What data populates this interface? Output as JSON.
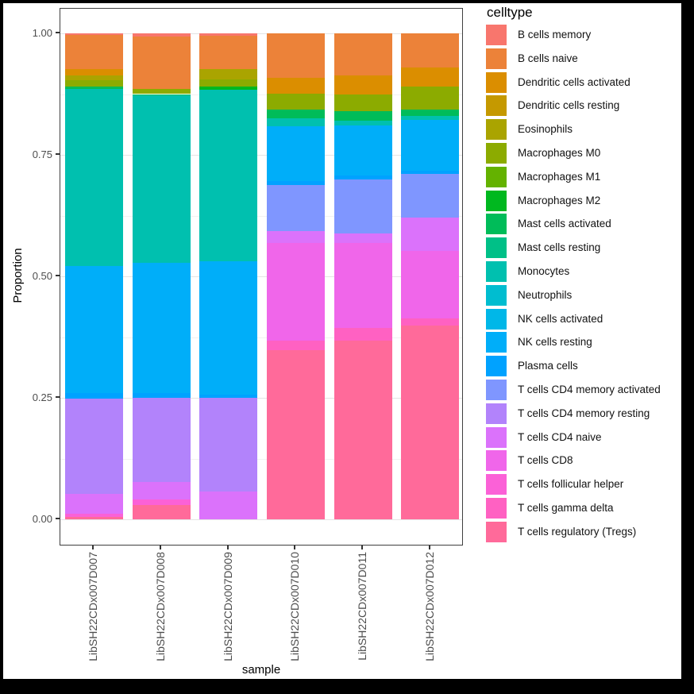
{
  "frame": {
    "background": "#000000"
  },
  "legend": {
    "title": "celltype"
  },
  "axes": {
    "y_title": "Proportion",
    "x_title": "sample",
    "y_tick_labels": [
      "1.00",
      "0.75",
      "0.50",
      "0.25",
      "0.00"
    ]
  },
  "chart_data": {
    "type": "bar",
    "subtype": "stacked_proportion_vertical",
    "title": "",
    "xlabel": "sample",
    "ylabel": "Proportion",
    "ylim": [
      0,
      1
    ],
    "yticks": [
      1.0,
      0.75,
      0.5,
      0.25,
      0.0
    ],
    "ytick_labels": [
      "1.00",
      "0.75",
      "0.50",
      "0.25",
      "0.00"
    ],
    "yticks_minor": [
      0.875,
      0.625,
      0.375,
      0.125
    ],
    "grid": true,
    "legend_position": "right",
    "legend_title": "celltype",
    "categories": [
      "LibSH22CDx007D007",
      "LibSH22CDx007D008",
      "LibSH22CDx007D009",
      "LibSH22CDx007D010",
      "LibSH22CDx007D011",
      "LibSH22CDx007D012"
    ],
    "series": [
      {
        "name": "B cells memory",
        "color": "#F8766D",
        "values": [
          0.004,
          0.007,
          0.005,
          0,
          0,
          0
        ]
      },
      {
        "name": "B cells naive",
        "color": "#EC8239",
        "values": [
          0.07,
          0.108,
          0.069,
          0.092,
          0.087,
          0.07
        ]
      },
      {
        "name": "Dendritic cells activated",
        "color": "#DB8E00",
        "values": [
          0.012,
          0,
          0,
          0.032,
          0.039,
          0.039
        ]
      },
      {
        "name": "Dendritic cells resting",
        "color": "#C59900",
        "values": [
          0,
          0,
          0,
          0,
          0,
          0
        ]
      },
      {
        "name": "Eosinophils",
        "color": "#AAA400",
        "values": [
          0.011,
          0,
          0.02,
          0,
          0,
          0
        ]
      },
      {
        "name": "Macrophages M0",
        "color": "#8CAB00",
        "values": [
          0.012,
          0.01,
          0.016,
          0.033,
          0.034,
          0.048
        ]
      },
      {
        "name": "Macrophages M1",
        "color": "#64B200",
        "values": [
          0,
          0,
          0,
          0,
          0,
          0
        ]
      },
      {
        "name": "Macrophages M2",
        "color": "#00B81F",
        "values": [
          0,
          0,
          0.006,
          0,
          0,
          0
        ]
      },
      {
        "name": "Mast cells activated",
        "color": "#00BC59",
        "values": [
          0.005,
          0.003,
          0,
          0.018,
          0.02,
          0.013
        ]
      },
      {
        "name": "Mast cells resting",
        "color": "#00C087",
        "values": [
          0,
          0,
          0,
          0,
          0,
          0
        ]
      },
      {
        "name": "Monocytes",
        "color": "#00C0AF",
        "values": [
          0.364,
          0.344,
          0.353,
          0.016,
          0.01,
          0.008
        ]
      },
      {
        "name": "Neutrophils",
        "color": "#00BDD0",
        "values": [
          0,
          0,
          0,
          0,
          0,
          0
        ]
      },
      {
        "name": "NK cells activated",
        "color": "#00B7E8",
        "values": [
          0,
          0,
          0,
          0,
          0,
          0
        ]
      },
      {
        "name": "NK cells resting",
        "color": "#00AEF9",
        "values": [
          0.263,
          0.268,
          0.274,
          0.113,
          0.102,
          0.105
        ]
      },
      {
        "name": "Plasma cells",
        "color": "#00A2FF",
        "values": [
          0.01,
          0.01,
          0.007,
          0.008,
          0.009,
          0.006
        ]
      },
      {
        "name": "T cells CD4 memory activated",
        "color": "#7F96FF",
        "values": [
          0,
          0,
          0,
          0.095,
          0.111,
          0.09
        ]
      },
      {
        "name": "T cells CD4 memory resting",
        "color": "#B283FB",
        "values": [
          0.196,
          0.173,
          0.193,
          0,
          0,
          0
        ]
      },
      {
        "name": "T cells CD4 naive",
        "color": "#DB72FB",
        "values": [
          0.041,
          0.036,
          0.057,
          0.024,
          0.019,
          0.069
        ]
      },
      {
        "name": "T cells CD8",
        "color": "#F066EA",
        "values": [
          0,
          0,
          0,
          0.201,
          0.175,
          0.139
        ]
      },
      {
        "name": "T cells follicular helper",
        "color": "#FB61D7",
        "values": [
          0.007,
          0.012,
          0,
          0,
          0,
          0
        ]
      },
      {
        "name": "T cells gamma delta",
        "color": "#FF61C2",
        "values": [
          0,
          0,
          0,
          0.02,
          0.026,
          0.014
        ]
      },
      {
        "name": "T cells regulatory (Tregs)",
        "color": "#FF6A9A",
        "values": [
          0.005,
          0.029,
          0,
          0.348,
          0.368,
          0.399
        ]
      }
    ]
  }
}
